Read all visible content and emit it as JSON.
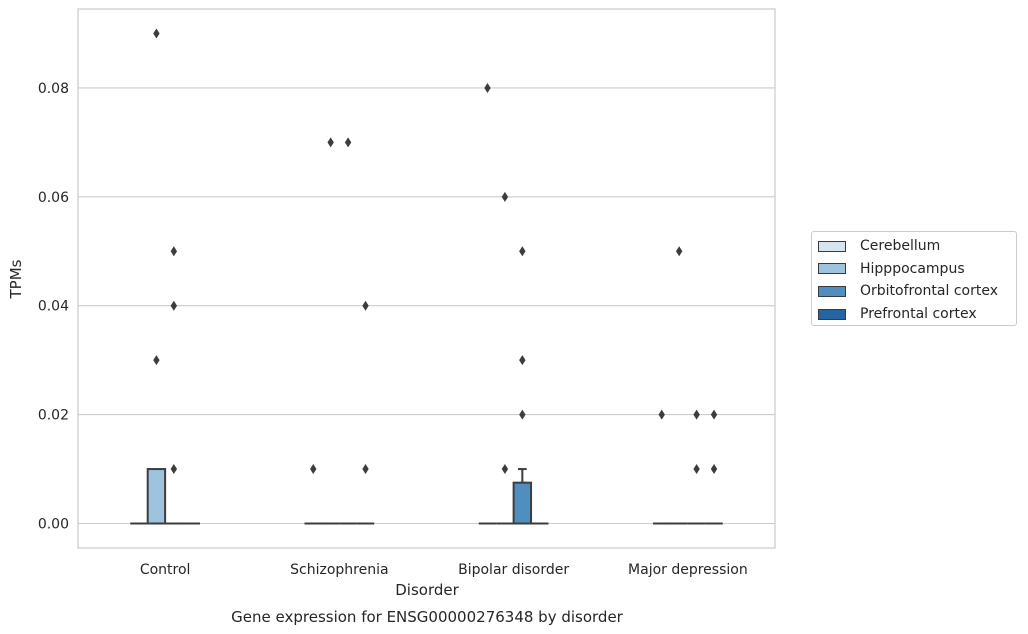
{
  "chart_data": {
    "type": "box",
    "title": "Gene expression for ENSG00000276348 by disorder",
    "xlabel": "Disorder",
    "ylabel": "TPMs",
    "categories": [
      "Control",
      "Schizophrenia",
      "Bipolar disorder",
      "Major depression"
    ],
    "hue_levels": [
      "Cerebellum",
      "Hipppocampus",
      "Orbitofrontal cortex",
      "Prefrontal cortex"
    ],
    "colors": [
      "#d6e4f0",
      "#9dc3de",
      "#4f8fc0",
      "#2565a3"
    ],
    "ylim": [
      -0.0045,
      0.0945
    ],
    "yticks": [
      0.0,
      0.02,
      0.04,
      0.06,
      0.08
    ],
    "ytick_labels": [
      "0.00",
      "0.02",
      "0.04",
      "0.06",
      "0.08"
    ],
    "grid": true,
    "legend_position": "right",
    "boxes": [
      {
        "category": "Control",
        "hue": "Cerebellum",
        "q1": 0,
        "median": 0,
        "q3": 0,
        "whisker_low": 0,
        "whisker_high": 0,
        "outliers": []
      },
      {
        "category": "Control",
        "hue": "Hipppocampus",
        "q1": 0,
        "median": 0,
        "q3": 0.01,
        "whisker_low": 0,
        "whisker_high": 0.01,
        "outliers": [
          0.09,
          0.03
        ]
      },
      {
        "category": "Control",
        "hue": "Orbitofrontal cortex",
        "q1": 0,
        "median": 0,
        "q3": 0,
        "whisker_low": 0,
        "whisker_high": 0,
        "outliers": [
          0.05,
          0.04,
          0.01
        ]
      },
      {
        "category": "Control",
        "hue": "Prefrontal cortex",
        "q1": 0,
        "median": 0,
        "q3": 0,
        "whisker_low": 0,
        "whisker_high": 0,
        "outliers": []
      },
      {
        "category": "Schizophrenia",
        "hue": "Cerebellum",
        "q1": 0,
        "median": 0,
        "q3": 0,
        "whisker_low": 0,
        "whisker_high": 0,
        "outliers": [
          0.01
        ]
      },
      {
        "category": "Schizophrenia",
        "hue": "Hipppocampus",
        "q1": 0,
        "median": 0,
        "q3": 0,
        "whisker_low": 0,
        "whisker_high": 0,
        "outliers": [
          0.07
        ]
      },
      {
        "category": "Schizophrenia",
        "hue": "Orbitofrontal cortex",
        "q1": 0,
        "median": 0,
        "q3": 0,
        "whisker_low": 0,
        "whisker_high": 0,
        "outliers": [
          0.07
        ]
      },
      {
        "category": "Schizophrenia",
        "hue": "Prefrontal cortex",
        "q1": 0,
        "median": 0,
        "q3": 0,
        "whisker_low": 0,
        "whisker_high": 0,
        "outliers": [
          0.04,
          0.01
        ]
      },
      {
        "category": "Bipolar disorder",
        "hue": "Cerebellum",
        "q1": 0,
        "median": 0,
        "q3": 0,
        "whisker_low": 0,
        "whisker_high": 0,
        "outliers": [
          0.08
        ]
      },
      {
        "category": "Bipolar disorder",
        "hue": "Hipppocampus",
        "q1": 0,
        "median": 0,
        "q3": 0,
        "whisker_low": 0,
        "whisker_high": 0,
        "outliers": [
          0.06,
          0.01
        ]
      },
      {
        "category": "Bipolar disorder",
        "hue": "Orbitofrontal cortex",
        "q1": 0,
        "median": 0,
        "q3": 0.0075,
        "whisker_low": 0,
        "whisker_high": 0.01,
        "outliers": [
          0.05,
          0.03,
          0.02
        ]
      },
      {
        "category": "Bipolar disorder",
        "hue": "Prefrontal cortex",
        "q1": 0,
        "median": 0,
        "q3": 0,
        "whisker_low": 0,
        "whisker_high": 0,
        "outliers": []
      },
      {
        "category": "Major depression",
        "hue": "Cerebellum",
        "q1": 0,
        "median": 0,
        "q3": 0,
        "whisker_low": 0,
        "whisker_high": 0,
        "outliers": [
          0.02
        ]
      },
      {
        "category": "Major depression",
        "hue": "Hipppocampus",
        "q1": 0,
        "median": 0,
        "q3": 0,
        "whisker_low": 0,
        "whisker_high": 0,
        "outliers": [
          0.05
        ]
      },
      {
        "category": "Major depression",
        "hue": "Orbitofrontal cortex",
        "q1": 0,
        "median": 0,
        "q3": 0,
        "whisker_low": 0,
        "whisker_high": 0,
        "outliers": [
          0.02,
          0.01
        ]
      },
      {
        "category": "Major depression",
        "hue": "Prefrontal cortex",
        "q1": 0,
        "median": 0,
        "q3": 0,
        "whisker_low": 0,
        "whisker_high": 0,
        "outliers": [
          0.02,
          0.01
        ]
      }
    ]
  }
}
